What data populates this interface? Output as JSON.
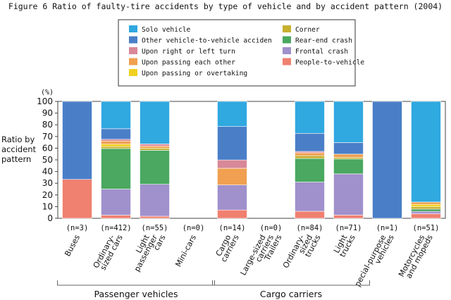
{
  "chart_data": {
    "type": "bar",
    "stacked": true,
    "title": "Figure 6  Ratio of faulty-tire accidents by type of vehicle and by accident pattern (2004)",
    "ylabel_unit": "(%)",
    "ylabel": [
      "Ratio by",
      "accident",
      "pattern"
    ],
    "ylim": [
      0,
      100
    ],
    "yticks": [
      0,
      10,
      20,
      30,
      40,
      50,
      60,
      70,
      80,
      90,
      100
    ],
    "categories": [
      {
        "label": [
          "Buses"
        ],
        "n": "(n=3)"
      },
      {
        "label": [
          "Ordinary-",
          "sized cars"
        ],
        "n": "(n=412)"
      },
      {
        "label": [
          "Light",
          "passenger",
          "cars"
        ],
        "n": "(n=55)"
      },
      {
        "label": [
          "Mini-cars"
        ],
        "n": "(n=0)"
      },
      {
        "label": [
          "Cargo",
          "carriers"
        ],
        "n": "(n=14)"
      },
      {
        "label": [
          "Large-sized",
          "carriers",
          "Trailers"
        ],
        "n": "(n=0)"
      },
      {
        "label": [
          "Ordinary-",
          "sized",
          "trucks"
        ],
        "n": "(n=84)"
      },
      {
        "label": [
          "Light",
          "trucks"
        ],
        "n": "(n=71)"
      },
      {
        "label": [
          "pecial-purpose",
          "vehicles"
        ],
        "n": "(n=1)"
      },
      {
        "label": [
          "Motorcycles",
          "and mopeds"
        ],
        "n": "(n=51)"
      }
    ],
    "series": [
      {
        "name": "People-to-vehicle",
        "color": "#f08070",
        "values": [
          33.3,
          2.7,
          1.8,
          0,
          7.1,
          0,
          6.0,
          2.8,
          0,
          3.9
        ]
      },
      {
        "name": "Frontal crash",
        "color": "#a090cc",
        "values": [
          0,
          22.3,
          27.3,
          0,
          21.4,
          0,
          25.0,
          35.2,
          0,
          2.0
        ]
      },
      {
        "name": "Rear-end crash",
        "color": "#4aa860",
        "values": [
          0,
          34.7,
          29.1,
          0,
          0,
          0,
          20.2,
          12.7,
          0,
          2.0
        ]
      },
      {
        "name": "Corner",
        "color": "#c8b030",
        "values": [
          0,
          1.7,
          1.8,
          0,
          0,
          0,
          2.4,
          1.4,
          0,
          2.0
        ]
      },
      {
        "name": "Upon passing or overtaking",
        "color": "#f0d020",
        "values": [
          0,
          2.0,
          0,
          0,
          0,
          0,
          0,
          0,
          0,
          2.0
        ]
      },
      {
        "name": "Upon passing each other",
        "color": "#f0a050",
        "values": [
          0,
          2.7,
          1.8,
          0,
          14.3,
          0,
          2.4,
          2.8,
          0,
          2.0
        ]
      },
      {
        "name": "Upon right or left turn",
        "color": "#d88898",
        "values": [
          0,
          1.5,
          1.8,
          0,
          7.1,
          0,
          1.2,
          0,
          0,
          0
        ]
      },
      {
        "name": "Other vehicle-to-vehicle acciden",
        "color": "#4a7fc8",
        "values": [
          66.7,
          9.0,
          0,
          0,
          28.6,
          0,
          15.5,
          9.9,
          100,
          0
        ]
      },
      {
        "name": "Solo vehicle",
        "color": "#30a8e0",
        "values": [
          0,
          23.4,
          36.4,
          0,
          21.5,
          0,
          27.3,
          35.2,
          0,
          86.1
        ]
      }
    ],
    "legend": {
      "placement": "top",
      "left_column": [
        "Solo vehicle",
        "Other vehicle-to-vehicle acciden",
        "Upon right or left turn",
        "Upon passing each other",
        "Upon passing or overtaking"
      ],
      "right_column": [
        "Corner",
        "Rear-end crash",
        "Frontal crash",
        "People-to-vehicle"
      ]
    },
    "groups": [
      {
        "label": "Passenger vehicles",
        "span": [
          0,
          3
        ]
      },
      {
        "label": "Cargo carriers",
        "span": [
          4,
          7
        ]
      }
    ]
  }
}
